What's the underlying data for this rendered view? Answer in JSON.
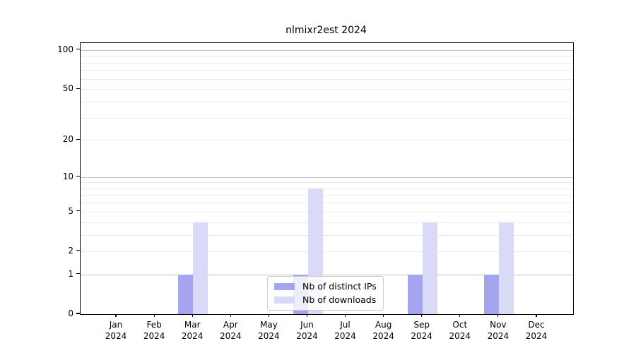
{
  "chart_data": {
    "type": "bar",
    "title": "nlmixr2est 2024",
    "xlabel": "",
    "ylabel": "",
    "year": "2024",
    "categories": [
      "Jan",
      "Feb",
      "Mar",
      "Apr",
      "May",
      "Jun",
      "Jul",
      "Aug",
      "Sep",
      "Oct",
      "Nov",
      "Dec"
    ],
    "series": [
      {
        "name": "Nb of distinct IPs",
        "color": "#a5a5ef",
        "values": [
          0,
          0,
          1,
          0,
          0,
          1,
          0,
          0,
          1,
          0,
          1,
          0
        ]
      },
      {
        "name": "Nb of downloads",
        "color": "#d9d9f8",
        "values": [
          0,
          0,
          4,
          0,
          0,
          8,
          0,
          0,
          4,
          0,
          4,
          0
        ]
      }
    ],
    "y_scale": "log10(1+x)",
    "ylim": [
      0,
      113
    ],
    "y_ticks": [
      0,
      1,
      2,
      5,
      10,
      20,
      50,
      100
    ],
    "major_gridlines": [
      1,
      10,
      100
    ],
    "minor_gridlines": [
      2,
      3,
      4,
      5,
      6,
      7,
      8,
      9,
      20,
      30,
      40,
      50,
      60,
      70,
      80,
      90
    ],
    "legend_position": "lower center",
    "grid": "on"
  }
}
